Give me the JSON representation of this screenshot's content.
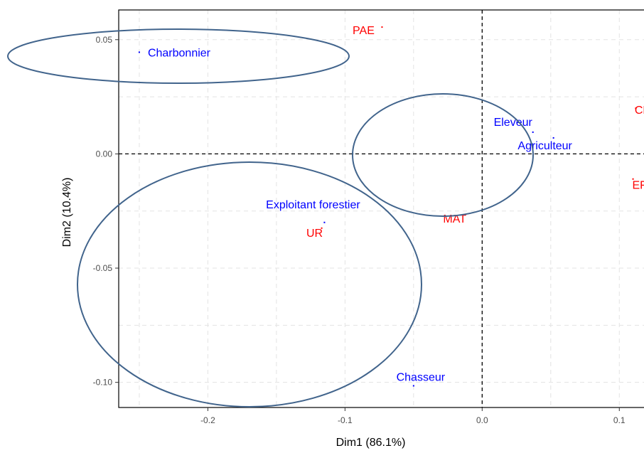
{
  "chart_data": {
    "type": "scatter",
    "xlabel": "Dim1 (86.1%)",
    "ylabel": "Dim2 (10.4%)",
    "xlim": [
      -0.265,
      0.118
    ],
    "ylim": [
      -0.111,
      0.063
    ],
    "x_ticks": [
      -0.2,
      -0.1,
      0.0,
      0.1
    ],
    "x_tick_labels": [
      "-0.2",
      "-0.1",
      "0.0",
      "0.1"
    ],
    "y_ticks": [
      -0.1,
      -0.05,
      0.0,
      0.05
    ],
    "y_tick_labels": [
      "-0.10",
      "-0.05",
      "0.00",
      "0.05"
    ],
    "grid": true,
    "reference_lines": {
      "x": 0,
      "y": 0,
      "style": "dashed"
    },
    "colors": {
      "rows": "#0000ff",
      "columns": "#ff0000",
      "ellipse": "#41648c"
    },
    "series": [
      {
        "color": "#0000ff",
        "points": [
          {
            "label": "Charbonnier",
            "x": -0.25,
            "y": 0.0445
          },
          {
            "label": "Eleveur",
            "x": 0.037,
            "y": 0.0095
          },
          {
            "label": "Agriculteur",
            "x": 0.052,
            "y": 0.007
          },
          {
            "label": "Exploitant forestier",
            "x": -0.115,
            "y": -0.03
          },
          {
            "label": "Chasseur",
            "x": -0.05,
            "y": -0.1015
          }
        ]
      },
      {
        "color": "#ff0000",
        "points": [
          {
            "label": "PAE",
            "x": -0.073,
            "y": 0.0555
          },
          {
            "label": "CD",
            "x": 0.112,
            "y": 0.02
          },
          {
            "label": "EFA",
            "x": 0.11,
            "y": -0.011
          },
          {
            "label": "MAT",
            "x": -0.02,
            "y": -0.027
          },
          {
            "label": "UR",
            "x": -0.117,
            "y": -0.0325
          }
        ]
      }
    ]
  }
}
